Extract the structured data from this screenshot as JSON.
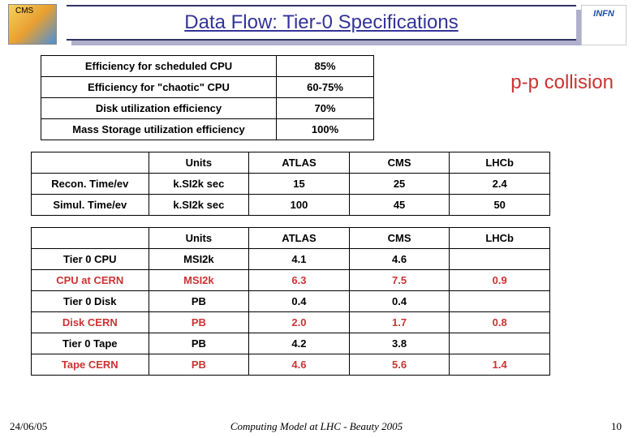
{
  "header": {
    "title": "Data Flow: Tier-0 Specifications",
    "right_logo_text": "INFN"
  },
  "annotation": "p-p collision",
  "table1": {
    "rows": [
      [
        "Efficiency for scheduled CPU",
        "85%"
      ],
      [
        "Efficiency for \"chaotic\" CPU",
        "60-75%"
      ],
      [
        "Disk utilization efficiency",
        "70%"
      ],
      [
        "Mass Storage utilization efficiency",
        "100%"
      ]
    ]
  },
  "table2": {
    "header": [
      "",
      "Units",
      "ATLAS",
      "CMS",
      "LHCb"
    ],
    "rows": [
      [
        "Recon. Time/ev",
        "k.SI2k sec",
        "15",
        "25",
        "2.4"
      ],
      [
        "Simul. Time/ev",
        "k.SI2k sec",
        "100",
        "45",
        "50"
      ]
    ]
  },
  "table3": {
    "header": [
      "",
      "Units",
      "ATLAS",
      "CMS",
      "LHCb"
    ],
    "rows": [
      {
        "cells": [
          "Tier 0 CPU",
          "MSI2k",
          "4.1",
          "4.6",
          ""
        ],
        "red": false
      },
      {
        "cells": [
          "CPU at CERN",
          "MSI2k",
          "6.3",
          "7.5",
          "0.9"
        ],
        "red": true
      },
      {
        "cells": [
          "Tier 0 Disk",
          "PB",
          "0.4",
          "0.4",
          ""
        ],
        "red": false
      },
      {
        "cells": [
          "Disk CERN",
          "PB",
          "2.0",
          "1.7",
          "0.8"
        ],
        "red": true
      },
      {
        "cells": [
          "Tier 0 Tape",
          "PB",
          "4.2",
          "3.8",
          ""
        ],
        "red": false
      },
      {
        "cells": [
          "Tape CERN",
          "PB",
          "4.6",
          "5.6",
          "1.4"
        ],
        "red": true
      }
    ]
  },
  "footer": {
    "date": "24/06/05",
    "center": "Computing Model at LHC - Beauty 2005",
    "page": "10"
  }
}
